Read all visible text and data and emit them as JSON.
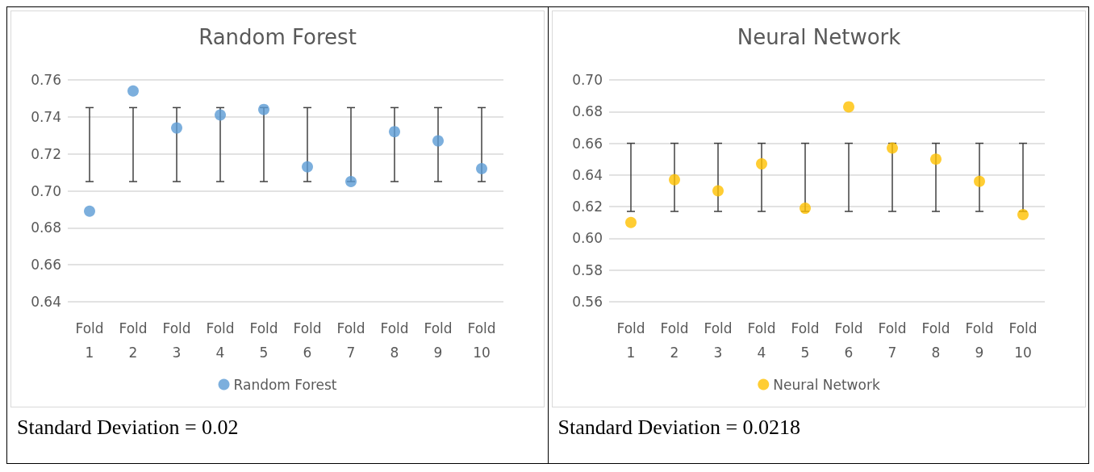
{
  "chart_data": [
    {
      "type": "scatter",
      "title": "Random Forest",
      "categories": [
        "Fold 1",
        "Fold 2",
        "Fold 3",
        "Fold 4",
        "Fold 5",
        "Fold 6",
        "Fold 7",
        "Fold 8",
        "Fold 9",
        "Fold 10"
      ],
      "series": [
        {
          "name": "Random Forest",
          "color": "#5b9bd5",
          "values": [
            0.689,
            0.754,
            0.734,
            0.741,
            0.744,
            0.713,
            0.705,
            0.732,
            0.727,
            0.712
          ],
          "errors": [
            [
              0.705,
              0.745
            ],
            [
              0.705,
              0.745
            ],
            [
              0.705,
              0.745
            ],
            [
              0.705,
              0.745
            ],
            [
              0.705,
              0.745
            ],
            [
              0.705,
              0.745
            ],
            [
              0.705,
              0.745
            ],
            [
              0.705,
              0.745
            ],
            [
              0.705,
              0.745
            ],
            [
              0.705,
              0.745
            ]
          ]
        }
      ],
      "ylim": [
        0.64,
        0.76
      ],
      "yticks": [
        {
          "value": 0.64,
          "label": "0.64"
        },
        {
          "value": 0.66,
          "label": "0.66"
        },
        {
          "value": 0.68,
          "label": "0.68"
        },
        {
          "value": 0.7,
          "label": "0.70"
        },
        {
          "value": 0.72,
          "label": "0.72"
        },
        {
          "value": 0.74,
          "label": "0.74"
        },
        {
          "value": 0.76,
          "label": "0.76"
        }
      ],
      "grid": "y",
      "legend": "bottom",
      "marker": "circle",
      "annotations": [
        "Standard Deviation = 0.02"
      ]
    },
    {
      "type": "scatter",
      "title": "Neural Network",
      "categories": [
        "Fold 1",
        "Fold 2",
        "Fold 3",
        "Fold 4",
        "Fold 5",
        "Fold 6",
        "Fold 7",
        "Fold 8",
        "Fold 9",
        "Fold 10"
      ],
      "series": [
        {
          "name": "Neural Network",
          "color": "#ffc000",
          "values": [
            0.61,
            0.637,
            0.63,
            0.647,
            0.619,
            0.683,
            0.657,
            0.65,
            0.636,
            0.615
          ],
          "errors": [
            [
              0.617,
              0.66
            ],
            [
              0.617,
              0.66
            ],
            [
              0.617,
              0.66
            ],
            [
              0.617,
              0.66
            ],
            [
              0.617,
              0.66
            ],
            [
              0.617,
              0.66
            ],
            [
              0.617,
              0.66
            ],
            [
              0.617,
              0.66
            ],
            [
              0.617,
              0.66
            ],
            [
              0.617,
              0.66
            ]
          ]
        }
      ],
      "ylim": [
        0.56,
        0.7
      ],
      "yticks": [
        {
          "value": 0.56,
          "label": "0.56"
        },
        {
          "value": 0.58,
          "label": "0.58"
        },
        {
          "value": 0.6,
          "label": "0.60"
        },
        {
          "value": 0.62,
          "label": "0.62"
        },
        {
          "value": 0.64,
          "label": "0.64"
        },
        {
          "value": 0.66,
          "label": "0.66"
        },
        {
          "value": 0.68,
          "label": "0.68"
        },
        {
          "value": 0.7,
          "label": "0.70"
        }
      ],
      "grid": "y",
      "legend": "bottom",
      "marker": "circle",
      "annotations": [
        "Standard Deviation = 0.0218"
      ]
    }
  ]
}
